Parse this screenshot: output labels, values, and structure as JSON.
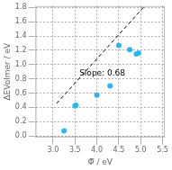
{
  "chart_data": {
    "type": "scatter",
    "xlabel": "Φ̅ / eV",
    "ylabel": "ΔEVolmer / eV",
    "series": [
      {
        "type": "scatter",
        "color": "#29b6f6",
        "marker": "circle",
        "x": [
          3.25,
          3.5,
          3.52,
          4.0,
          4.3,
          4.5,
          4.75,
          4.9,
          4.95
        ],
        "values": [
          0.07,
          0.42,
          0.43,
          0.57,
          0.7,
          1.27,
          1.21,
          1.15,
          1.16
        ]
      },
      {
        "type": "line",
        "color": "#000000",
        "line_style": "dashed",
        "x": [
          3.08,
          5.08
        ],
        "values": [
          0.4544,
          1.8144
        ]
      }
    ],
    "annotations": [
      {
        "text": "Slope: 0.68",
        "x": 3.6,
        "y": 0.82
      }
    ],
    "xlim": [
      2.6,
      5.55
    ],
    "ylim": [
      -0.02,
      1.82
    ],
    "xticks": [
      {
        "value": 3.0,
        "label": "3.0"
      },
      3.5,
      {
        "value": 4.0,
        "label": "4.0"
      },
      4.5,
      {
        "value": 5.0,
        "label": "5.0"
      },
      5.5
    ],
    "yticks": [
      {
        "value": 0.0,
        "label": "0.0"
      },
      0.2,
      0.4,
      0.6,
      0.8,
      {
        "value": 1.0,
        "label": "1.0"
      },
      1.2,
      1.4,
      1.6,
      1.8
    ],
    "grid": true
  }
}
